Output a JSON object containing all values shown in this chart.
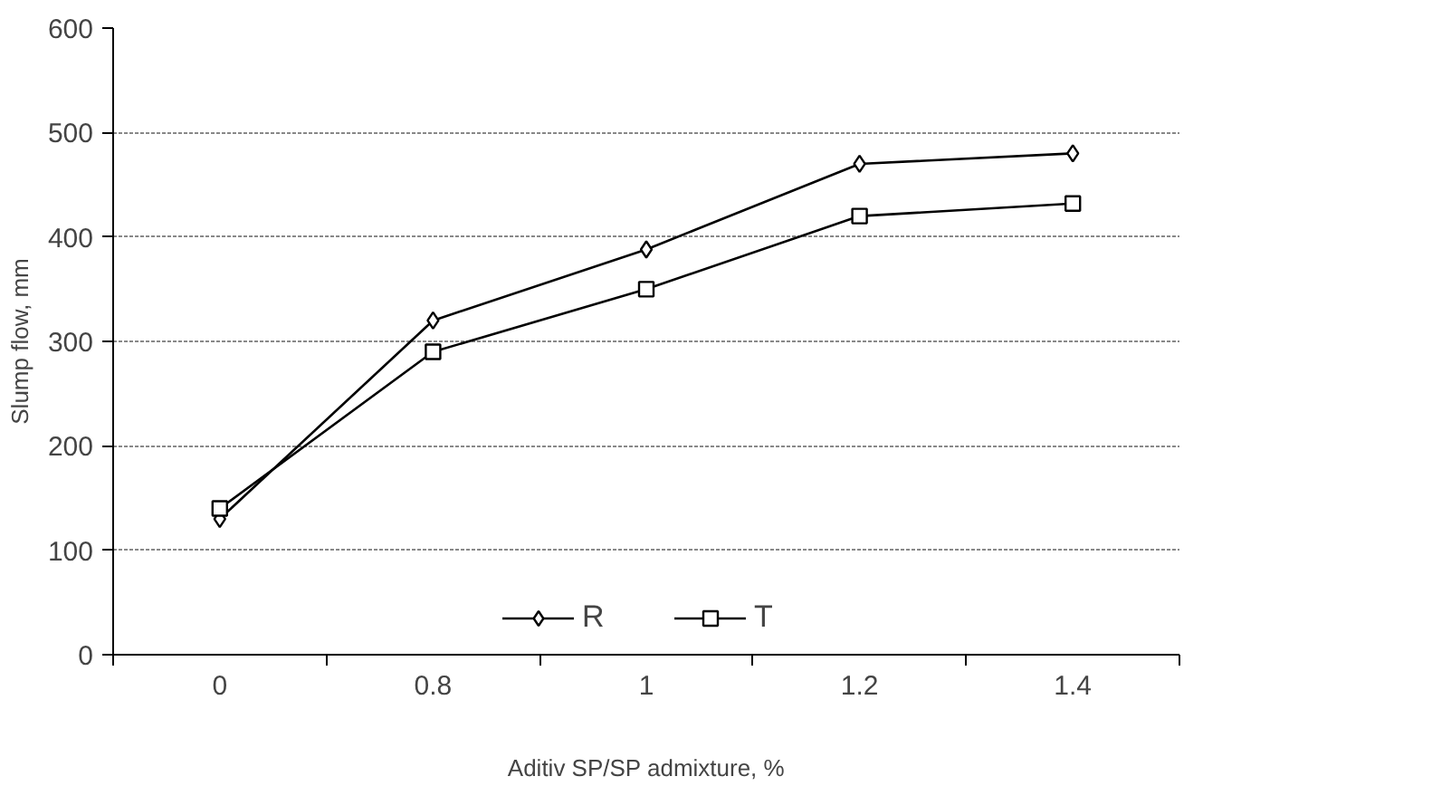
{
  "chart_data": {
    "type": "line",
    "xlabel": "Aditiv SP/SP admixture, %",
    "ylabel": "Slump flow, mm",
    "categories": [
      "0",
      "0.8",
      "1",
      "1.2",
      "1.4"
    ],
    "series": [
      {
        "name": "R",
        "color": "#000000",
        "marker": "diamond",
        "values": [
          130,
          320,
          388,
          470,
          480
        ]
      },
      {
        "name": "T",
        "color": "#000000",
        "marker": "square",
        "values": [
          140,
          290,
          350,
          420,
          432
        ]
      }
    ],
    "ylim": [
      0,
      600
    ],
    "yticks": [
      0,
      100,
      200,
      300,
      400,
      500,
      600
    ],
    "grid": "y",
    "legend": "bottom",
    "line_style": "solid"
  }
}
